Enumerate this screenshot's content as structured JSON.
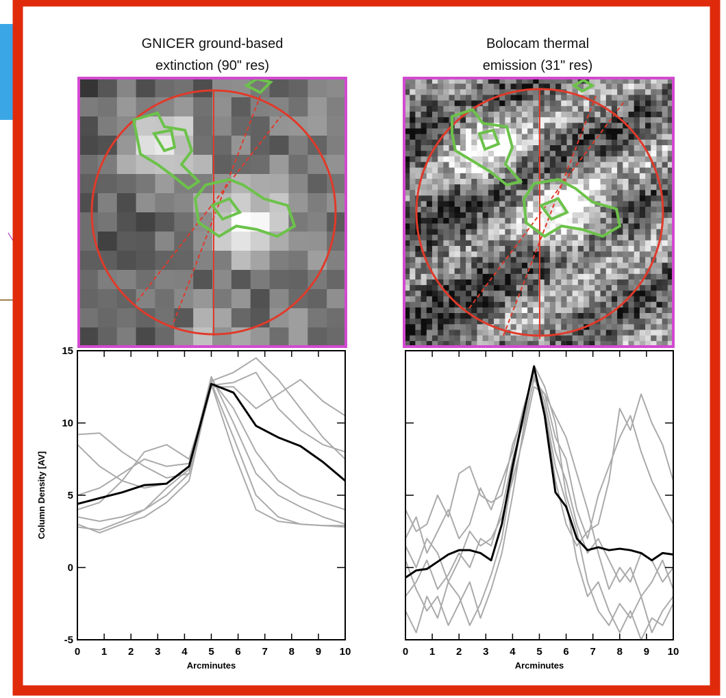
{
  "chart_data": [
    {
      "type": "line",
      "title_lines": [
        "GNICER ground-based",
        "extinction (90\" res)"
      ],
      "xlabel": "Arcminutes",
      "ylabel": "Column Density [AV]",
      "x": [
        0,
        0.83,
        1.67,
        2.5,
        3.33,
        4.17,
        5,
        5.83,
        6.67,
        7.5,
        8.33,
        9.17,
        10
      ],
      "series": [
        {
          "color": "#aaaaaa",
          "linewidth": 2,
          "values": [
            9.2,
            9.3,
            8.0,
            7.0,
            6.2,
            6.5,
            13.0,
            11.0,
            8.0,
            6.0,
            5.0,
            4.5,
            4.0
          ]
        },
        {
          "color": "#aaaaaa",
          "linewidth": 2,
          "values": [
            3.0,
            2.4,
            3.0,
            3.5,
            4.5,
            6.0,
            12.8,
            9.0,
            5.0,
            3.5,
            3.0,
            2.9,
            2.9
          ]
        },
        {
          "color": "#aaaaaa",
          "linewidth": 2,
          "values": [
            5.0,
            5.5,
            6.5,
            7.5,
            7.0,
            7.2,
            12.9,
            13.5,
            14.5,
            13.0,
            11.0,
            9.0,
            7.5
          ]
        },
        {
          "color": "#aaaaaa",
          "linewidth": 2,
          "values": [
            3.5,
            3.2,
            3.5,
            4.0,
            5.0,
            6.5,
            12.5,
            12.5,
            11.0,
            12.0,
            13.0,
            11.5,
            10.5
          ]
        },
        {
          "color": "#aaaaaa",
          "linewidth": 2,
          "values": [
            8.5,
            7.0,
            6.0,
            5.5,
            5.8,
            7.0,
            13.2,
            10.0,
            6.5,
            5.0,
            4.2,
            3.5,
            3.0
          ]
        },
        {
          "color": "#aaaaaa",
          "linewidth": 2,
          "values": [
            4.0,
            4.5,
            6.0,
            8.0,
            8.5,
            7.5,
            12.6,
            12.8,
            13.5,
            11.0,
            9.5,
            8.5,
            8.0
          ]
        },
        {
          "color": "#aaaaaa",
          "linewidth": 2,
          "values": [
            2.8,
            2.6,
            3.2,
            4.0,
            5.5,
            6.8,
            12.7,
            8.0,
            4.0,
            3.2,
            3.0,
            2.9,
            2.8
          ]
        },
        {
          "color": "#000000",
          "linewidth": 3,
          "values": [
            4.4,
            4.8,
            5.2,
            5.7,
            5.8,
            7.0,
            12.7,
            12.1,
            9.8,
            9.0,
            8.4,
            7.3,
            6.0
          ]
        }
      ],
      "xlim": [
        0,
        10
      ],
      "xticks": [
        0,
        1,
        2,
        3,
        4,
        5,
        6,
        7,
        8,
        9,
        10
      ],
      "ylim": [
        -5,
        15
      ],
      "yticks": [
        -5,
        0,
        5,
        10,
        15
      ],
      "ytick_labels": true
    },
    {
      "type": "line",
      "title_lines": [
        "Bolocam thermal",
        "emission (31\" res)"
      ],
      "xlabel": "Arcminutes",
      "x": [
        0,
        0.4,
        0.8,
        1.2,
        1.6,
        2.0,
        2.4,
        2.8,
        3.2,
        3.6,
        4.0,
        4.4,
        4.8,
        5.2,
        5.6,
        6.0,
        6.4,
        6.8,
        7.2,
        7.6,
        8.0,
        8.4,
        8.8,
        9.2,
        9.6,
        10.0
      ],
      "series": [
        {
          "color": "#aaaaaa",
          "linewidth": 2,
          "values": [
            2.0,
            3.5,
            1.0,
            2.5,
            4.0,
            2.0,
            3.0,
            5.5,
            4.0,
            6.0,
            8.0,
            11.0,
            13.5,
            11.5,
            8.0,
            6.0,
            3.0,
            1.0,
            2.0,
            0.5,
            -1.0,
            0.0,
            -2.0,
            -1.0,
            0.5,
            -1.5
          ]
        },
        {
          "color": "#aaaaaa",
          "linewidth": 2,
          "values": [
            -2.0,
            -1.0,
            0.5,
            -1.5,
            -0.5,
            1.0,
            0.0,
            2.0,
            1.5,
            4.0,
            7.5,
            10.0,
            13.0,
            12.0,
            9.0,
            7.5,
            4.0,
            2.0,
            5.0,
            7.0,
            9.0,
            10.5,
            8.0,
            6.0,
            4.5,
            3.0
          ]
        },
        {
          "color": "#aaaaaa",
          "linewidth": 2,
          "values": [
            4.0,
            2.5,
            3.0,
            5.0,
            3.5,
            6.5,
            7.0,
            5.0,
            4.5,
            5.0,
            8.5,
            10.5,
            14.0,
            12.5,
            10.0,
            5.0,
            2.5,
            -1.0,
            -3.0,
            -4.0,
            -2.5,
            -3.5,
            -2.0,
            -4.5,
            -3.0,
            -2.0
          ]
        },
        {
          "color": "#aaaaaa",
          "linewidth": 2,
          "values": [
            0.5,
            -1.5,
            -3.0,
            -2.0,
            -4.0,
            -2.5,
            -1.0,
            -3.5,
            -1.5,
            1.0,
            5.0,
            9.5,
            13.2,
            11.0,
            6.0,
            3.0,
            1.5,
            2.5,
            3.0,
            6.0,
            11.0,
            9.5,
            12.0,
            10.0,
            8.5,
            6.0
          ]
        },
        {
          "color": "#aaaaaa",
          "linewidth": 2,
          "values": [
            1.5,
            0.0,
            2.0,
            1.0,
            -1.0,
            0.5,
            2.5,
            1.5,
            2.0,
            3.5,
            6.0,
            9.0,
            12.5,
            12.0,
            10.5,
            9.0,
            6.5,
            4.0,
            1.0,
            -1.5,
            0.0,
            -1.0,
            1.0,
            0.5,
            -1.0,
            0.0
          ]
        },
        {
          "color": "#aaaaaa",
          "linewidth": 2,
          "values": [
            -3.0,
            -4.5,
            -2.0,
            -3.5,
            -1.0,
            -2.0,
            -4.0,
            -2.5,
            -0.5,
            2.0,
            6.5,
            10.5,
            13.8,
            11.0,
            7.0,
            4.5,
            0.5,
            -2.0,
            -1.0,
            -3.0,
            -4.5,
            -3.0,
            -5.0,
            -3.5,
            -4.0,
            -2.5
          ]
        },
        {
          "color": "#000000",
          "linewidth": 3,
          "values": [
            -0.7,
            -0.2,
            -0.1,
            0.4,
            0.9,
            1.2,
            1.2,
            1.0,
            0.5,
            3.0,
            7.0,
            10.5,
            13.9,
            10.5,
            5.2,
            4.2,
            2.0,
            1.2,
            1.4,
            1.2,
            1.3,
            1.2,
            1.0,
            0.5,
            1.0,
            0.9
          ]
        }
      ],
      "xlim": [
        0,
        10
      ],
      "xticks": [
        0,
        1,
        2,
        3,
        4,
        5,
        6,
        7,
        8,
        9,
        10
      ],
      "ylim": [
        -5,
        15
      ],
      "yticks": [
        -5,
        0,
        5,
        10,
        15
      ],
      "ytick_labels": false
    }
  ]
}
